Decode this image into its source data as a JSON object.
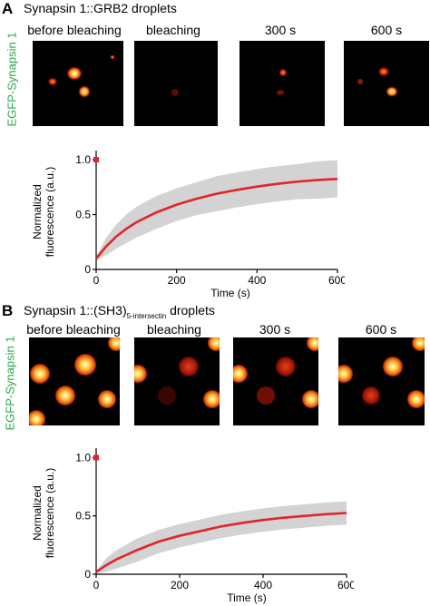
{
  "panels": [
    {
      "letter": "A",
      "title_pre": "Synapsin 1::GRB2 droplets",
      "title_sub": "",
      "title_post": "",
      "side_label": "EGFP-Synapsin 1",
      "frames": [
        "before bleaching",
        "bleaching",
        "300 s",
        "600 s"
      ]
    },
    {
      "letter": "B",
      "title_pre": "Synapsin 1::(SH3)",
      "title_sub": "5-intersectin",
      "title_post": " droplets",
      "side_label": "EGFP-Synapsin 1",
      "frames": [
        "before bleaching",
        "bleaching",
        "300 s",
        "600 s"
      ]
    }
  ],
  "colors": {
    "curve": "#e0242a",
    "band": "#d3d3d3",
    "side_label": "#2aa84a"
  },
  "chart_data": [
    {
      "type": "line",
      "title": "",
      "xlabel": "Time (s)",
      "ylabel_lines": [
        "Normalized",
        "fluorescence (a.u.)"
      ],
      "xlim": [
        0,
        600
      ],
      "ylim": [
        0,
        1.05
      ],
      "xticks": [
        "0",
        "200",
        "400",
        "600"
      ],
      "yticks": [
        "0",
        "0.5",
        "1.0"
      ],
      "ytick_values": [
        0,
        0.5,
        1.0
      ],
      "xtick_values": [
        0,
        200,
        400,
        600
      ],
      "pre_bleach_point": {
        "x": 0,
        "y": 1.0
      },
      "series": [
        {
          "x": [
            0,
            25,
            50,
            75,
            100,
            150,
            200,
            250,
            300,
            350,
            400,
            450,
            500,
            550,
            600
          ],
          "y": [
            0.1,
            0.21,
            0.3,
            0.37,
            0.43,
            0.52,
            0.59,
            0.645,
            0.69,
            0.725,
            0.755,
            0.78,
            0.8,
            0.815,
            0.825
          ]
        }
      ],
      "band_halfwidth": [
        0.02,
        0.08,
        0.11,
        0.13,
        0.14,
        0.15,
        0.15,
        0.15,
        0.16,
        0.16,
        0.16,
        0.16,
        0.16,
        0.17,
        0.17
      ]
    },
    {
      "type": "line",
      "title": "",
      "xlabel": "Time (s)",
      "ylabel_lines": [
        "Normalized",
        "fluorescence (a.u.)"
      ],
      "xlim": [
        0,
        600
      ],
      "ylim": [
        0,
        1.05
      ],
      "xticks": [
        "0",
        "200",
        "400",
        "600"
      ],
      "yticks": [
        "0",
        "0.5",
        "1.0"
      ],
      "ytick_values": [
        0,
        0.5,
        1.0
      ],
      "xtick_values": [
        0,
        200,
        400,
        600
      ],
      "pre_bleach_point": {
        "x": 0,
        "y": 1.0
      },
      "series": [
        {
          "x": [
            0,
            25,
            50,
            75,
            100,
            150,
            200,
            250,
            300,
            350,
            400,
            450,
            500,
            550,
            600
          ],
          "y": [
            0.02,
            0.08,
            0.13,
            0.17,
            0.21,
            0.28,
            0.33,
            0.37,
            0.41,
            0.44,
            0.465,
            0.485,
            0.5,
            0.515,
            0.525
          ]
        }
      ],
      "band_halfwidth": [
        0.01,
        0.06,
        0.08,
        0.09,
        0.1,
        0.1,
        0.1,
        0.1,
        0.1,
        0.1,
        0.1,
        0.1,
        0.1,
        0.1,
        0.1
      ]
    }
  ]
}
